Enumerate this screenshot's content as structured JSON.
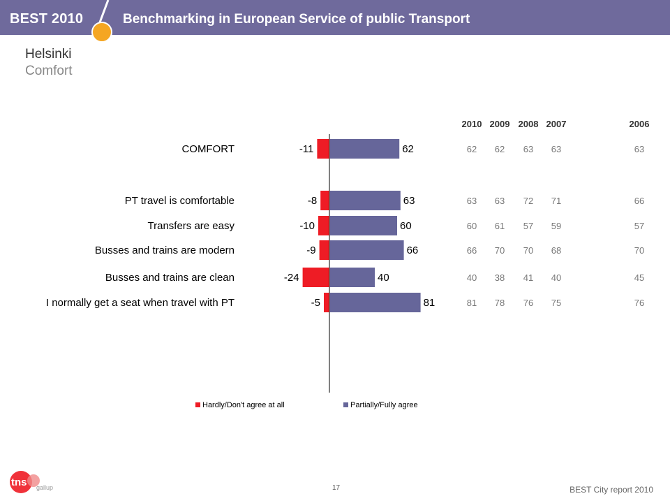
{
  "header": {
    "brand": "BEST",
    "brand_year": "2010",
    "title": "Benchmarking in European Service of public Transport"
  },
  "page": {
    "title": "Helsinki",
    "subtitle": "Comfort",
    "page_number": "17",
    "report_label": "BEST City report 2010",
    "logo_text_1": "tns",
    "logo_text_2": "gallup"
  },
  "colors": {
    "header_bg": "#6f6a9c",
    "disagree": "#ee1c25",
    "agree": "#66669a",
    "accent_orange": "#f5a623"
  },
  "chart_data": {
    "type": "bar",
    "orientation": "horizontal-diverging",
    "categories": [
      "COMFORT",
      "PT travel is comfortable",
      "Transfers are easy",
      "Busses and trains are modern",
      "Busses and trains are clean",
      "I normally get a seat when travel with PT"
    ],
    "series": [
      {
        "name": "Hardly/Don't agree at all",
        "values": [
          -11,
          -8,
          -10,
          -9,
          -24,
          -5
        ],
        "labels": [
          "-11",
          "-8",
          "-10",
          "-9",
          "-24",
          "-5"
        ]
      },
      {
        "name": "Partially/Fully agree",
        "values": [
          62,
          63,
          60,
          66,
          40,
          81
        ],
        "labels": [
          "62",
          "63",
          "60",
          "66",
          "40",
          "81"
        ]
      }
    ],
    "legend_position": "bottom",
    "history": {
      "years": [
        "2010",
        "2009",
        "2008",
        "2007",
        "2006"
      ],
      "rows": [
        [
          "62",
          "62",
          "63",
          "63",
          "63"
        ],
        [
          "63",
          "63",
          "72",
          "71",
          "66"
        ],
        [
          "60",
          "61",
          "57",
          "59",
          "57"
        ],
        [
          "66",
          "70",
          "70",
          "68",
          "70"
        ],
        [
          "40",
          "38",
          "41",
          "40",
          "45"
        ],
        [
          "81",
          "78",
          "76",
          "75",
          "76"
        ]
      ]
    }
  }
}
